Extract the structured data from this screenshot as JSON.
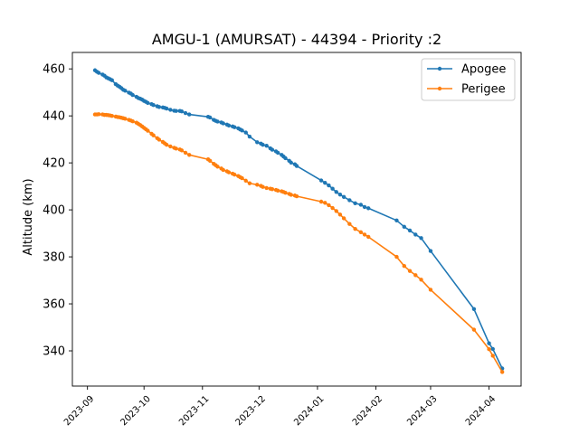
{
  "chart_data": {
    "type": "line",
    "title": "AMGU-1 (AMURSAT) - 44394 - Priority :2",
    "xlabel": "",
    "ylabel": "Altitude (km)",
    "xlim": [
      "2023-08-24",
      "2024-04-18"
    ],
    "ylim": [
      325,
      467
    ],
    "yticks": [
      340,
      360,
      380,
      400,
      420,
      440,
      460
    ],
    "xticks": [
      "2023-09",
      "2023-10",
      "2023-11",
      "2023-12",
      "2024-01",
      "2024-02",
      "2024-03",
      "2024-04"
    ],
    "grid": false,
    "legend_position": "top-right",
    "series": [
      {
        "name": "Apogee",
        "color": "#1f77b4",
        "x": [
          "2023-09-05",
          "2023-09-06",
          "2023-09-07",
          "2023-09-09",
          "2023-09-10",
          "2023-09-11",
          "2023-09-12",
          "2023-09-13",
          "2023-09-14",
          "2023-09-16",
          "2023-09-17",
          "2023-09-18",
          "2023-09-19",
          "2023-09-20",
          "2023-09-21",
          "2023-09-23",
          "2023-09-24",
          "2023-09-25",
          "2023-09-27",
          "2023-09-28",
          "2023-09-29",
          "2023-09-30",
          "2023-10-01",
          "2023-10-02",
          "2023-10-03",
          "2023-10-05",
          "2023-10-06",
          "2023-10-08",
          "2023-10-09",
          "2023-10-11",
          "2023-10-12",
          "2023-10-13",
          "2023-10-15",
          "2023-10-17",
          "2023-10-18",
          "2023-10-20",
          "2023-10-21",
          "2023-10-23",
          "2023-10-25",
          "2023-11-04",
          "2023-11-05",
          "2023-11-07",
          "2023-11-08",
          "2023-11-09",
          "2023-11-11",
          "2023-11-12",
          "2023-11-14",
          "2023-11-15",
          "2023-11-17",
          "2023-11-18",
          "2023-11-20",
          "2023-11-21",
          "2023-11-22",
          "2023-11-24",
          "2023-11-26",
          "2023-11-30",
          "2023-12-02",
          "2023-12-03",
          "2023-12-05",
          "2023-12-07",
          "2023-12-08",
          "2023-12-10",
          "2023-12-11",
          "2023-12-13",
          "2023-12-14",
          "2023-12-15",
          "2023-12-17",
          "2023-12-18",
          "2023-12-20",
          "2023-12-21",
          "2024-01-03",
          "2024-01-05",
          "2024-01-07",
          "2024-01-09",
          "2024-01-11",
          "2024-01-13",
          "2024-01-15",
          "2024-01-18",
          "2024-01-21",
          "2024-01-24",
          "2024-01-26",
          "2024-01-28",
          "2024-02-12",
          "2024-02-16",
          "2024-02-19",
          "2024-02-22",
          "2024-02-25",
          "2024-03-01",
          "2024-03-24",
          "2024-04-01",
          "2024-04-03",
          "2024-04-08"
        ],
        "values": [
          459.4,
          458.8,
          458.3,
          457.6,
          457.1,
          456.4,
          456.0,
          455.6,
          455.2,
          453.5,
          452.9,
          452.4,
          451.8,
          451.1,
          450.7,
          449.9,
          449.5,
          448.9,
          448.1,
          447.6,
          447.3,
          446.9,
          446.4,
          446.0,
          445.5,
          445.0,
          444.6,
          444.1,
          443.8,
          443.6,
          443.4,
          443.1,
          442.6,
          442.2,
          442.1,
          442.1,
          441.9,
          441.2,
          440.6,
          439.6,
          439.3,
          438.3,
          437.9,
          437.6,
          437.2,
          436.8,
          436.3,
          435.9,
          435.5,
          435.2,
          434.7,
          434.2,
          433.8,
          432.9,
          431.2,
          428.8,
          428.2,
          427.7,
          427.3,
          426.2,
          425.6,
          424.9,
          424.3,
          423.4,
          422.7,
          422.0,
          420.9,
          420.1,
          419.4,
          418.7,
          412.5,
          411.5,
          410.4,
          409.0,
          407.6,
          406.5,
          405.5,
          404.1,
          402.8,
          402.2,
          401.2,
          400.7,
          395.5,
          392.8,
          391.2,
          389.5,
          388.0,
          382.5,
          357.8,
          343.2,
          340.8,
          332.5
        ]
      },
      {
        "name": "Perigee",
        "color": "#ff7f0e",
        "x": [
          "2023-09-05",
          "2023-09-06",
          "2023-09-07",
          "2023-09-09",
          "2023-09-10",
          "2023-09-11",
          "2023-09-12",
          "2023-09-13",
          "2023-09-14",
          "2023-09-16",
          "2023-09-17",
          "2023-09-18",
          "2023-09-19",
          "2023-09-20",
          "2023-09-21",
          "2023-09-23",
          "2023-09-24",
          "2023-09-25",
          "2023-09-27",
          "2023-09-28",
          "2023-09-29",
          "2023-09-30",
          "2023-10-01",
          "2023-10-02",
          "2023-10-03",
          "2023-10-05",
          "2023-10-06",
          "2023-10-08",
          "2023-10-09",
          "2023-10-11",
          "2023-10-12",
          "2023-10-13",
          "2023-10-15",
          "2023-10-17",
          "2023-10-18",
          "2023-10-20",
          "2023-10-21",
          "2023-10-23",
          "2023-10-25",
          "2023-11-04",
          "2023-11-05",
          "2023-11-07",
          "2023-11-08",
          "2023-11-09",
          "2023-11-11",
          "2023-11-12",
          "2023-11-14",
          "2023-11-15",
          "2023-11-17",
          "2023-11-18",
          "2023-11-20",
          "2023-11-21",
          "2023-11-22",
          "2023-11-24",
          "2023-11-26",
          "2023-11-30",
          "2023-12-02",
          "2023-12-03",
          "2023-12-05",
          "2023-12-07",
          "2023-12-08",
          "2023-12-10",
          "2023-12-11",
          "2023-12-13",
          "2023-12-14",
          "2023-12-15",
          "2023-12-17",
          "2023-12-18",
          "2023-12-20",
          "2023-12-21",
          "2024-01-03",
          "2024-01-05",
          "2024-01-07",
          "2024-01-09",
          "2024-01-11",
          "2024-01-13",
          "2024-01-15",
          "2024-01-18",
          "2024-01-21",
          "2024-01-24",
          "2024-01-26",
          "2024-01-28",
          "2024-02-12",
          "2024-02-16",
          "2024-02-19",
          "2024-02-22",
          "2024-02-25",
          "2024-03-01",
          "2024-03-24",
          "2024-04-01",
          "2024-04-03",
          "2024-04-08"
        ],
        "values": [
          440.6,
          440.6,
          440.7,
          440.6,
          440.4,
          440.4,
          440.3,
          440.2,
          440.0,
          439.7,
          439.5,
          439.4,
          439.2,
          439.0,
          438.8,
          438.3,
          438.0,
          437.7,
          437.1,
          436.6,
          436.1,
          435.5,
          434.9,
          434.3,
          433.7,
          432.4,
          431.7,
          430.5,
          429.9,
          428.9,
          428.3,
          427.7,
          427.0,
          426.4,
          426.1,
          425.7,
          425.3,
          424.3,
          423.4,
          421.5,
          420.9,
          419.6,
          419.0,
          418.4,
          417.6,
          417.0,
          416.4,
          416.0,
          415.4,
          415.0,
          414.4,
          413.9,
          413.5,
          412.4,
          411.3,
          410.7,
          410.2,
          409.8,
          409.3,
          409.0,
          408.8,
          408.5,
          408.2,
          407.9,
          407.6,
          407.3,
          406.8,
          406.4,
          406.1,
          405.8,
          403.5,
          403.0,
          402.0,
          400.8,
          399.5,
          398.0,
          396.4,
          394.0,
          391.9,
          390.5,
          389.5,
          388.5,
          380.0,
          376.1,
          374.0,
          372.2,
          370.3,
          366.0,
          349.0,
          340.7,
          337.9,
          331.0
        ]
      }
    ]
  }
}
